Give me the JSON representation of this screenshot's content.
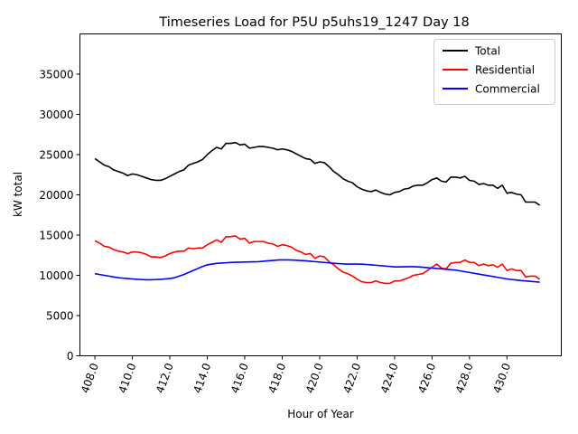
{
  "chart_data": {
    "type": "line",
    "title": "Timeseries Load for P5U p5uhs19_1247  Day 18",
    "xlabel": "Hour of Year",
    "ylabel": "kW total",
    "xlim": [
      407.2,
      432.9
    ],
    "ylim": [
      0,
      40000
    ],
    "xticks": [
      408,
      410,
      412,
      414,
      416,
      418,
      420,
      422,
      424,
      426,
      428,
      430
    ],
    "xtick_labels": [
      "408.0",
      "410.0",
      "412.0",
      "414.0",
      "416.0",
      "418.0",
      "420.0",
      "422.0",
      "424.0",
      "426.0",
      "428.0",
      "430.0"
    ],
    "yticks": [
      0,
      5000,
      10000,
      15000,
      20000,
      25000,
      30000,
      35000
    ],
    "ytick_labels": [
      "0",
      "5000",
      "10000",
      "15000",
      "20000",
      "25000",
      "30000",
      "35000"
    ],
    "grid": false,
    "legend_position": "top-right",
    "x": [
      408.0,
      408.25,
      408.5,
      408.75,
      409.0,
      409.25,
      409.5,
      409.75,
      410.0,
      410.25,
      410.5,
      410.75,
      411.0,
      411.25,
      411.5,
      411.75,
      412.0,
      412.25,
      412.5,
      412.75,
      413.0,
      413.25,
      413.5,
      413.75,
      414.0,
      414.25,
      414.5,
      414.75,
      415.0,
      415.25,
      415.5,
      415.75,
      416.0,
      416.25,
      416.5,
      416.75,
      417.0,
      417.25,
      417.5,
      417.75,
      418.0,
      418.25,
      418.5,
      418.75,
      419.0,
      419.25,
      419.5,
      419.75,
      420.0,
      420.25,
      420.5,
      420.75,
      421.0,
      421.25,
      421.5,
      421.75,
      422.0,
      422.25,
      422.5,
      422.75,
      423.0,
      423.25,
      423.5,
      423.75,
      424.0,
      424.25,
      424.5,
      424.75,
      425.0,
      425.25,
      425.5,
      425.75,
      426.0,
      426.25,
      426.5,
      426.75,
      427.0,
      427.25,
      427.5,
      427.75,
      428.0,
      428.25,
      428.5,
      428.75,
      429.0,
      429.25,
      429.5,
      429.75,
      430.0,
      430.25,
      430.5,
      430.75,
      431.0,
      431.25,
      431.5,
      431.75
    ],
    "series": [
      {
        "name": "Total",
        "color": "#000000",
        "values": [
          24500,
          24100,
          23700,
          23500,
          23100,
          22900,
          22700,
          22400,
          22600,
          22500,
          22300,
          22100,
          21900,
          21800,
          21800,
          22000,
          22300,
          22600,
          22900,
          23100,
          23700,
          23900,
          24100,
          24400,
          25000,
          25500,
          25900,
          25700,
          26400,
          26400,
          26500,
          26200,
          26300,
          25800,
          25900,
          26000,
          26000,
          25900,
          25800,
          25600,
          25700,
          25600,
          25400,
          25100,
          24800,
          24500,
          24400,
          23900,
          24100,
          24000,
          23500,
          22900,
          22500,
          22000,
          21700,
          21500,
          21000,
          20700,
          20500,
          20400,
          20600,
          20300,
          20100,
          20000,
          20300,
          20400,
          20700,
          20800,
          21100,
          21200,
          21200,
          21500,
          21900,
          22100,
          21700,
          21600,
          22200,
          22200,
          22100,
          22300,
          21800,
          21700,
          21300,
          21400,
          21200,
          21200,
          20800,
          21200,
          20200,
          20300,
          20100,
          20000,
          19100,
          19100,
          19100,
          18700
        ]
      },
      {
        "name": "Residential",
        "color": "#ff0000",
        "values": [
          14300,
          14000,
          13600,
          13500,
          13200,
          13000,
          12900,
          12700,
          12900,
          12900,
          12800,
          12600,
          12300,
          12300,
          12200,
          12400,
          12700,
          12900,
          13000,
          13000,
          13400,
          13300,
          13400,
          13400,
          13800,
          14100,
          14400,
          14100,
          14800,
          14800,
          14900,
          14500,
          14600,
          14000,
          14200,
          14200,
          14200,
          14000,
          13900,
          13600,
          13800,
          13700,
          13500,
          13100,
          12900,
          12600,
          12700,
          12100,
          12400,
          12300,
          11700,
          11300,
          10800,
          10400,
          10200,
          9900,
          9500,
          9200,
          9100,
          9100,
          9300,
          9100,
          9000,
          9000,
          9300,
          9300,
          9500,
          9700,
          10000,
          10100,
          10200,
          10600,
          11000,
          11400,
          10900,
          10800,
          11500,
          11600,
          11600,
          11900,
          11600,
          11600,
          11200,
          11400,
          11200,
          11300,
          11000,
          11400,
          10600,
          10800,
          10600,
          10600,
          9800,
          9900,
          9900,
          9500
        ]
      },
      {
        "name": "Commercial",
        "color": "#0000ff",
        "values": [
          10200,
          10100,
          10000,
          9900,
          9800,
          9700,
          9650,
          9600,
          9550,
          9500,
          9480,
          9450,
          9450,
          9480,
          9500,
          9550,
          9600,
          9700,
          9900,
          10100,
          10350,
          10600,
          10850,
          11100,
          11300,
          11400,
          11480,
          11520,
          11560,
          11600,
          11620,
          11640,
          11650,
          11660,
          11680,
          11700,
          11750,
          11800,
          11850,
          11900,
          11920,
          11920,
          11900,
          11870,
          11830,
          11800,
          11750,
          11700,
          11650,
          11600,
          11550,
          11500,
          11450,
          11420,
          11400,
          11400,
          11400,
          11380,
          11350,
          11300,
          11250,
          11200,
          11150,
          11100,
          11050,
          11050,
          11060,
          11080,
          11080,
          11050,
          11000,
          10950,
          10900,
          10850,
          10800,
          10750,
          10700,
          10650,
          10550,
          10450,
          10350,
          10250,
          10150,
          10050,
          9950,
          9850,
          9750,
          9650,
          9550,
          9480,
          9420,
          9350,
          9300,
          9250,
          9200,
          9150
        ]
      }
    ]
  }
}
